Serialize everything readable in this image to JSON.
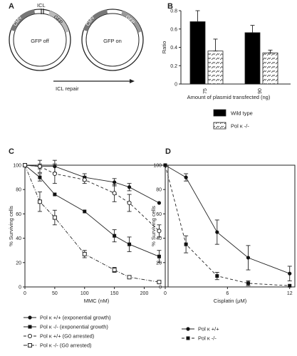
{
  "panels": {
    "a": "A",
    "b": "B",
    "c": "C",
    "d": "D"
  },
  "panel_a": {
    "plasmid_left": {
      "icl": "ICL",
      "cmv": "CMV",
      "gfp": "GFP",
      "state": "GFP off"
    },
    "plasmid_right": {
      "cmv": "CMV",
      "gfp": "GFP",
      "state": "GFP on"
    },
    "arrow_label": "ICL repair"
  },
  "chart_data": [
    {
      "id": "B",
      "type": "bar",
      "ylabel": "Ratio",
      "xlabel": "Amount of plasmid transfected (ng)",
      "categories": [
        "75",
        "90"
      ],
      "ylim": [
        0,
        0.8
      ],
      "yticks": [
        "0",
        "0.2",
        "0.4",
        "0.6",
        "0.8"
      ],
      "series": [
        {
          "name": "Wild type",
          "values": [
            0.68,
            0.56
          ],
          "errors": [
            0.12,
            0.08
          ],
          "fill": "#000000"
        },
        {
          "name": "Pol κ -/-",
          "values": [
            0.36,
            0.34
          ],
          "errors": [
            0.13,
            0.03
          ],
          "fill": "hatch"
        }
      ],
      "legend_position": "bottom"
    },
    {
      "id": "C",
      "type": "line",
      "ylabel": "% Surviving cells",
      "xlabel": "MMC (nM)",
      "xlim": [
        0,
        240
      ],
      "ylim": [
        0,
        100
      ],
      "xticks": [
        "0",
        "50",
        "100",
        "150",
        "200"
      ],
      "yticks": [
        "0",
        "20",
        "40",
        "60",
        "80",
        "100"
      ],
      "series": [
        {
          "name": "Pol κ +/+ (exponential growth)",
          "marker": "filled-circle",
          "dash": "solid",
          "x": [
            0,
            25,
            50,
            100,
            150,
            175,
            225
          ],
          "y": [
            100,
            99,
            99,
            90,
            86,
            82,
            69
          ],
          "err": [
            0,
            2,
            5,
            3,
            3,
            3,
            0
          ]
        },
        {
          "name": "Pol κ -/- (exponential growth)",
          "marker": "filled-square",
          "dash": "solid",
          "x": [
            0,
            25,
            50,
            100,
            150,
            175,
            225
          ],
          "y": [
            100,
            90,
            76,
            62,
            42,
            35,
            25
          ],
          "err": [
            0,
            3,
            0,
            0,
            5,
            6,
            5
          ]
        },
        {
          "name": "Pol κ +/+ (G0 arrested)",
          "marker": "open-circle",
          "dash": "dashed",
          "x": [
            0,
            25,
            50,
            100,
            150,
            175,
            225
          ],
          "y": [
            100,
            99,
            93,
            88,
            77,
            69,
            46
          ],
          "err": [
            0,
            5,
            8,
            3,
            7,
            7,
            5
          ]
        },
        {
          "name": "Pol κ -/- (G0 arrested)",
          "marker": "open-square",
          "dash": "dashdot",
          "x": [
            0,
            25,
            50,
            100,
            150,
            175,
            225
          ],
          "y": [
            100,
            70,
            57,
            27,
            14,
            8,
            4
          ],
          "err": [
            0,
            8,
            6,
            3,
            2,
            0,
            0
          ]
        }
      ],
      "legend_position": "bottom"
    },
    {
      "id": "D",
      "type": "line",
      "ylabel": "% Surviving cells",
      "xlabel": "Cisplatin (μM)",
      "xlim": [
        0,
        12.5
      ],
      "ylim": [
        0,
        100
      ],
      "xticks": [
        "0",
        "6",
        "12"
      ],
      "yticks": [
        "0",
        "20",
        "40",
        "60",
        "80",
        "100"
      ],
      "series": [
        {
          "name": "Pol κ +/+",
          "marker": "filled-circle",
          "dash": "solid",
          "x": [
            0,
            2,
            5,
            8,
            12
          ],
          "y": [
            100,
            90,
            45,
            24,
            11
          ],
          "err": [
            0,
            3,
            10,
            10,
            6
          ]
        },
        {
          "name": "Pol κ -/-",
          "marker": "filled-square",
          "dash": "dashed",
          "x": [
            0,
            2,
            5,
            8,
            12
          ],
          "y": [
            100,
            35,
            9,
            3,
            1
          ],
          "err": [
            0,
            7,
            3,
            2,
            0
          ]
        }
      ],
      "legend_position": "bottom"
    }
  ]
}
